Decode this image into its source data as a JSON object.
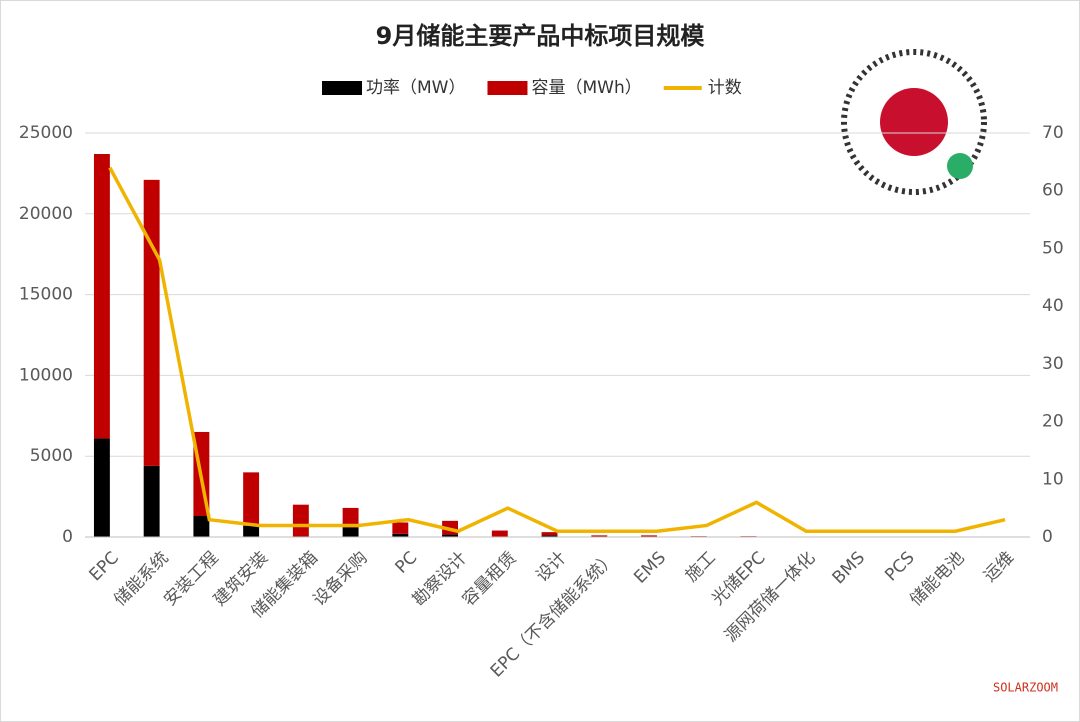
{
  "chart_data": {
    "type": "bar",
    "stacked": true,
    "title": "9月储能主要产品中标项目规模",
    "categories": [
      "EPC",
      "储能系统",
      "安装工程",
      "建筑安装",
      "储能集装箱",
      "设备采购",
      "PC",
      "勘察设计",
      "容量租赁",
      "设计",
      "EPC（不含储能系统）",
      "EMS",
      "施工",
      "光储EPC",
      "源网荷储一体化",
      "BMS",
      "PCS",
      "储能电池",
      "运维"
    ],
    "series": [
      {
        "name": "功率（MW）",
        "color": "#000000",
        "values": [
          6100,
          4400,
          1300,
          700,
          0,
          600,
          200,
          150,
          0,
          100,
          0,
          0,
          0,
          0,
          0,
          0,
          0,
          0,
          0
        ]
      },
      {
        "name": "容量（MWh）",
        "color": "#c00000",
        "values": [
          17600,
          17700,
          5200,
          3300,
          2000,
          1200,
          700,
          850,
          400,
          200,
          100,
          100,
          50,
          50,
          0,
          0,
          0,
          0,
          0
        ]
      },
      {
        "name": "计数",
        "color": "#f0b400",
        "type": "line",
        "axis": "y2",
        "values": [
          64,
          48,
          3,
          2,
          2,
          2,
          3,
          1,
          5,
          1,
          1,
          1,
          2,
          6,
          1,
          1,
          1,
          1,
          3
        ]
      }
    ],
    "ylim": [
      0,
      25000
    ],
    "yticks": [
      0,
      5000,
      10000,
      15000,
      20000,
      25000
    ],
    "y2lim": [
      0,
      70
    ],
    "y2ticks": [
      0,
      10,
      20,
      30,
      40,
      50,
      60,
      70
    ],
    "grid": true,
    "legend": "top",
    "source": "SOLARZOOM"
  }
}
